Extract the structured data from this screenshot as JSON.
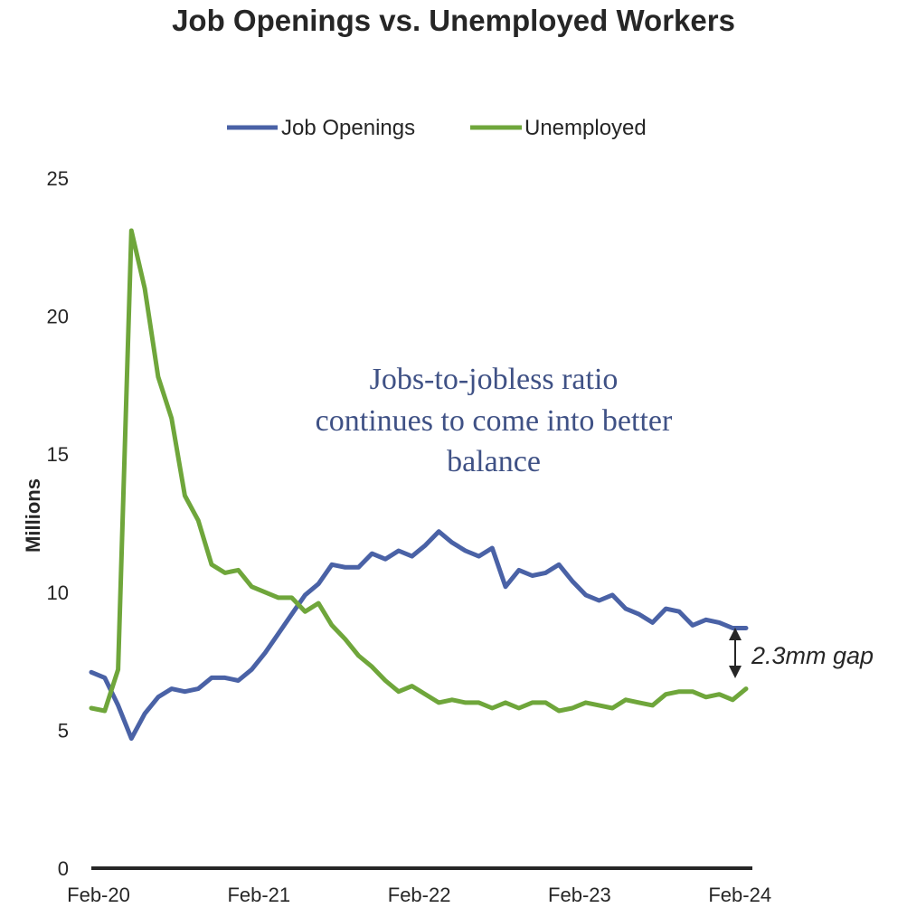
{
  "chart_data": {
    "type": "line",
    "title": "Job Openings vs. Unemployed Workers",
    "ylabel": "Millions",
    "xlabel": "",
    "ylim": [
      0,
      25
    ],
    "yticks": [
      0,
      5,
      10,
      15,
      20,
      25
    ],
    "x_tick_labels": [
      "Feb-20",
      "Feb-21",
      "Feb-22",
      "Feb-23",
      "Feb-24"
    ],
    "x_tick_indices": [
      0,
      12,
      24,
      36,
      48
    ],
    "legend": "top",
    "annotation": "Jobs-to-jobless ratio continues to come into better balance",
    "annotation_lines": [
      "Jobs-to-jobless ratio",
      "continues to come into better",
      "balance"
    ],
    "gap_label": "2.3mm gap",
    "series": [
      {
        "name": "Job Openings",
        "color": "#4a62a6",
        "values": [
          7.1,
          6.9,
          5.9,
          4.7,
          5.6,
          6.2,
          6.5,
          6.4,
          6.5,
          6.9,
          6.9,
          6.8,
          7.2,
          7.8,
          8.5,
          9.2,
          9.9,
          10.3,
          11.0,
          10.9,
          10.9,
          11.4,
          11.2,
          11.5,
          11.3,
          11.7,
          12.2,
          11.8,
          11.5,
          11.3,
          11.6,
          10.2,
          10.8,
          10.6,
          10.7,
          11.0,
          10.4,
          9.9,
          9.7,
          9.9,
          9.4,
          9.2,
          8.9,
          9.4,
          9.3,
          8.8,
          9.0,
          8.9,
          8.7,
          8.7
        ]
      },
      {
        "name": "Unemployed",
        "color": "#6fa63b",
        "values": [
          5.8,
          5.7,
          7.2,
          23.1,
          21.0,
          17.8,
          16.3,
          13.5,
          12.6,
          11.0,
          10.7,
          10.8,
          10.2,
          10.0,
          9.8,
          9.8,
          9.3,
          9.6,
          8.8,
          8.3,
          7.7,
          7.3,
          6.8,
          6.4,
          6.6,
          6.3,
          6.0,
          6.1,
          6.0,
          6.0,
          5.8,
          6.0,
          5.8,
          6.0,
          6.0,
          5.7,
          5.8,
          6.0,
          5.9,
          5.8,
          6.1,
          6.0,
          5.9,
          6.3,
          6.4,
          6.4,
          6.2,
          6.3,
          6.1,
          6.5
        ]
      }
    ]
  }
}
